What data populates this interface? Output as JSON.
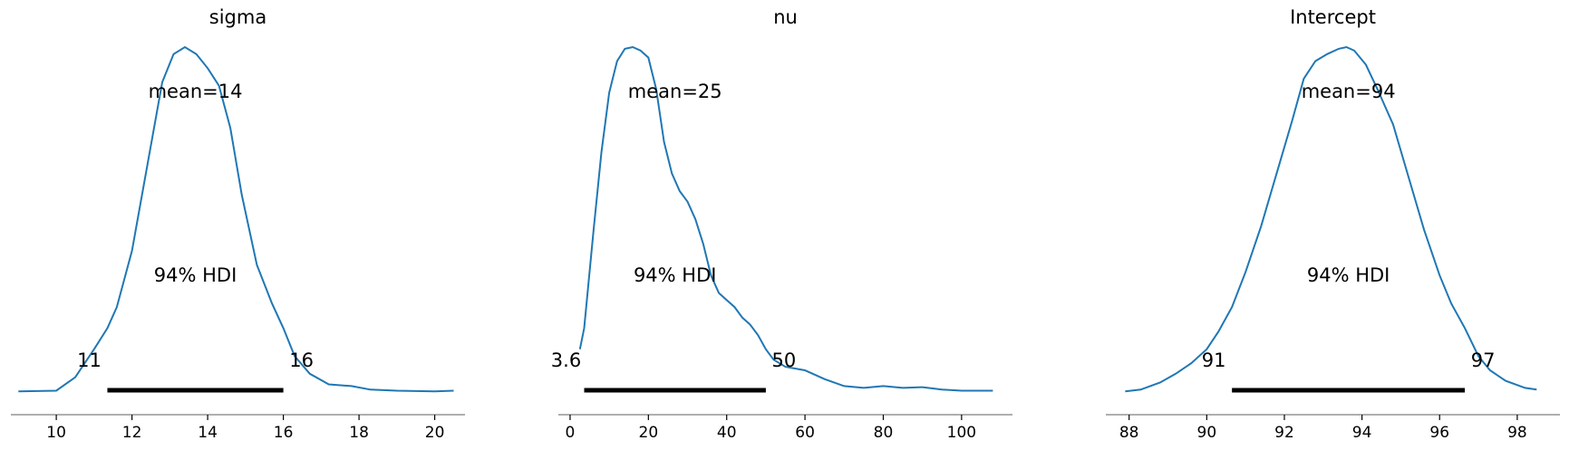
{
  "chart_data": [
    {
      "type": "area",
      "title": "sigma",
      "xlim": [
        8.8,
        20.8
      ],
      "ticks": [
        10,
        12,
        14,
        16,
        18,
        20
      ],
      "mean_label": "mean=14",
      "hdi_label": "94% HDI",
      "hdi_low": 11.35,
      "hdi_high": 16.0,
      "hdi_low_label": "11",
      "hdi_high_label": "16",
      "density": [
        [
          9.0,
          0.02
        ],
        [
          10.0,
          0.022
        ],
        [
          10.5,
          0.06
        ],
        [
          11.0,
          0.14
        ],
        [
          11.35,
          0.2
        ],
        [
          11.6,
          0.26
        ],
        [
          12.0,
          0.42
        ],
        [
          12.4,
          0.66
        ],
        [
          12.8,
          0.9
        ],
        [
          13.1,
          0.98
        ],
        [
          13.4,
          1.0
        ],
        [
          13.7,
          0.98
        ],
        [
          14.0,
          0.94
        ],
        [
          14.3,
          0.89
        ],
        [
          14.6,
          0.77
        ],
        [
          14.9,
          0.58
        ],
        [
          15.3,
          0.38
        ],
        [
          15.7,
          0.27
        ],
        [
          16.0,
          0.2
        ],
        [
          16.3,
          0.12
        ],
        [
          16.7,
          0.07
        ],
        [
          17.2,
          0.04
        ],
        [
          17.8,
          0.035
        ],
        [
          18.3,
          0.025
        ],
        [
          19.0,
          0.022
        ],
        [
          20.0,
          0.02
        ],
        [
          20.5,
          0.022
        ]
      ]
    },
    {
      "type": "area",
      "title": "nu",
      "xlim": [
        -3.0,
        113.0
      ],
      "ticks": [
        0,
        20,
        40,
        60,
        80,
        100
      ],
      "mean_label": "mean=25",
      "hdi_label": "94% HDI",
      "hdi_low": 3.6,
      "hdi_high": 50.0,
      "hdi_low_label": "3.6",
      "hdi_high_label": "50",
      "density": [
        [
          2.5,
          0.14
        ],
        [
          3.6,
          0.2
        ],
        [
          6.0,
          0.48
        ],
        [
          8.0,
          0.7
        ],
        [
          10.0,
          0.87
        ],
        [
          12.0,
          0.96
        ],
        [
          14.0,
          0.995
        ],
        [
          16.0,
          1.0
        ],
        [
          18.0,
          0.99
        ],
        [
          20.0,
          0.97
        ],
        [
          22.0,
          0.88
        ],
        [
          24.0,
          0.73
        ],
        [
          26.0,
          0.64
        ],
        [
          28.0,
          0.59
        ],
        [
          30.0,
          0.56
        ],
        [
          32.0,
          0.51
        ],
        [
          34.0,
          0.44
        ],
        [
          36.0,
          0.35
        ],
        [
          38.0,
          0.3
        ],
        [
          40.0,
          0.28
        ],
        [
          42.0,
          0.26
        ],
        [
          44.0,
          0.23
        ],
        [
          46.0,
          0.21
        ],
        [
          48.0,
          0.18
        ],
        [
          50.0,
          0.14
        ],
        [
          52.0,
          0.11
        ],
        [
          55.0,
          0.09
        ],
        [
          60.0,
          0.08
        ],
        [
          65.0,
          0.055
        ],
        [
          70.0,
          0.035
        ],
        [
          75.0,
          0.03
        ],
        [
          80.0,
          0.035
        ],
        [
          85.0,
          0.03
        ],
        [
          90.0,
          0.032
        ],
        [
          95.0,
          0.025
        ],
        [
          100.0,
          0.022
        ],
        [
          108.0,
          0.022
        ]
      ]
    },
    {
      "type": "area",
      "title": "Intercept",
      "xlim": [
        87.4,
        99.1
      ],
      "ticks": [
        88,
        90,
        92,
        94,
        96,
        98
      ],
      "mean_label": "mean=94",
      "hdi_label": "94% HDI",
      "hdi_low": 90.65,
      "hdi_high": 96.65,
      "hdi_low_label": "91",
      "hdi_high_label": "97",
      "density": [
        [
          87.9,
          0.02
        ],
        [
          88.3,
          0.025
        ],
        [
          88.8,
          0.045
        ],
        [
          89.2,
          0.07
        ],
        [
          89.6,
          0.1
        ],
        [
          90.0,
          0.14
        ],
        [
          90.3,
          0.19
        ],
        [
          90.65,
          0.26
        ],
        [
          91.0,
          0.36
        ],
        [
          91.4,
          0.49
        ],
        [
          91.8,
          0.64
        ],
        [
          92.2,
          0.79
        ],
        [
          92.5,
          0.91
        ],
        [
          92.8,
          0.96
        ],
        [
          93.1,
          0.98
        ],
        [
          93.4,
          0.995
        ],
        [
          93.6,
          1.0
        ],
        [
          93.8,
          0.99
        ],
        [
          94.1,
          0.95
        ],
        [
          94.4,
          0.88
        ],
        [
          94.8,
          0.78
        ],
        [
          95.2,
          0.63
        ],
        [
          95.6,
          0.48
        ],
        [
          96.0,
          0.35
        ],
        [
          96.3,
          0.27
        ],
        [
          96.65,
          0.2
        ],
        [
          97.0,
          0.12
        ],
        [
          97.3,
          0.08
        ],
        [
          97.7,
          0.05
        ],
        [
          98.2,
          0.03
        ],
        [
          98.5,
          0.025
        ]
      ]
    }
  ]
}
